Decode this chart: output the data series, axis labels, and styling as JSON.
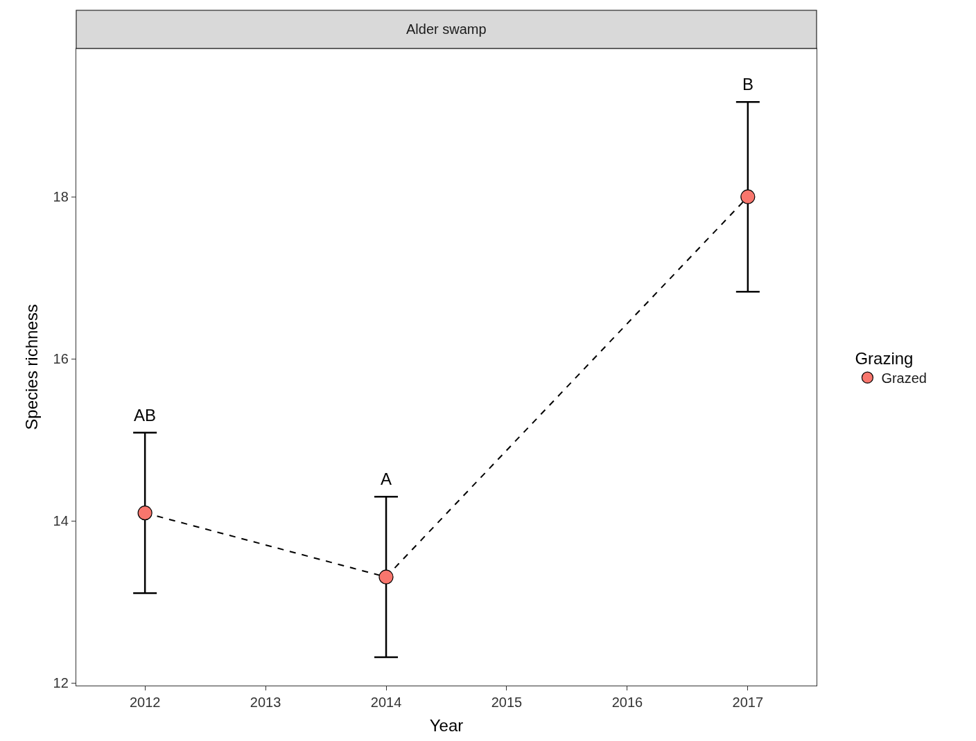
{
  "chart_data": {
    "type": "scatter",
    "title": "Alder swamp",
    "xlabel": "Year",
    "ylabel": "Species richness",
    "legend_title": "Grazing",
    "x": [
      2012,
      2014,
      2017
    ],
    "series": [
      {
        "type": "line",
        "color": "#000000",
        "values": [
          14.1,
          13.31,
          18.0
        ],
        "marker": "none",
        "line_style": "dashed"
      },
      {
        "name": "Grazed",
        "color": "#f8766d",
        "values": [
          14.1,
          13.31,
          18.0
        ],
        "errors": [
          0.99,
          0.99,
          1.17
        ],
        "marker": "circle"
      }
    ],
    "annotations": [
      "AB",
      "A",
      "B"
    ],
    "xlim": [
      2011.43,
      2017.57
    ],
    "xticks": [
      2012,
      2013,
      2014,
      2015,
      2016,
      2017
    ],
    "ylim": [
      11.97,
      19.83
    ],
    "yticks": [
      12,
      14,
      16,
      18
    ],
    "legend": "right"
  }
}
